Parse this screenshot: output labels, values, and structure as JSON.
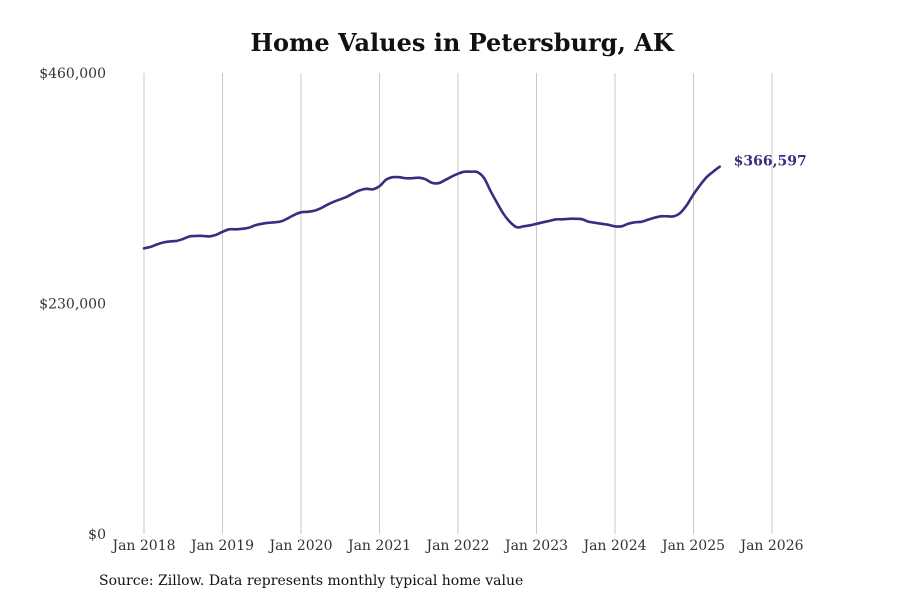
{
  "colors": {
    "line": "#34307f",
    "grid": "#c8c8c8",
    "text": "#333333"
  },
  "source_note": "Source: Zillow. Data represents monthly typical home value",
  "chart_data": {
    "type": "line",
    "title": "Home Values in Petersburg, AK",
    "xlabel": "",
    "ylabel": "",
    "x_start": "2018-01",
    "x_range_years": [
      2018,
      2026.1
    ],
    "ylim": [
      0,
      460000
    ],
    "yticks": [
      {
        "value": 0,
        "label": "$0"
      },
      {
        "value": 230000,
        "label": "$230,000"
      },
      {
        "value": 460000,
        "label": "$460,000"
      }
    ],
    "xticks": [
      {
        "value": 2018,
        "label": "Jan 2018"
      },
      {
        "value": 2019,
        "label": "Jan 2019"
      },
      {
        "value": 2020,
        "label": "Jan 2020"
      },
      {
        "value": 2021,
        "label": "Jan 2021"
      },
      {
        "value": 2022,
        "label": "Jan 2022"
      },
      {
        "value": 2023,
        "label": "Jan 2023"
      },
      {
        "value": 2024,
        "label": "Jan 2024"
      },
      {
        "value": 2025,
        "label": "Jan 2025"
      },
      {
        "value": 2026,
        "label": "Jan 2026"
      }
    ],
    "grid": "vertical",
    "end_label": "$366,597",
    "series": [
      {
        "name": "Typical home value",
        "values": [
          285000,
          286500,
          289000,
          291000,
          292000,
          292500,
          294500,
          297000,
          297500,
          297500,
          297000,
          298500,
          301500,
          304000,
          304000,
          304500,
          305500,
          308000,
          309500,
          310500,
          311000,
          312000,
          315000,
          318500,
          321000,
          321500,
          322500,
          325000,
          328500,
          331500,
          334000,
          336500,
          340000,
          343000,
          344500,
          344000,
          347000,
          353500,
          356000,
          356000,
          355000,
          355000,
          355500,
          354000,
          350500,
          350000,
          353000,
          356500,
          359500,
          361500,
          361500,
          361000,
          355000,
          342000,
          330000,
          319000,
          311000,
          306000,
          307000,
          308000,
          309500,
          311000,
          312500,
          314000,
          314000,
          314500,
          314500,
          314000,
          311500,
          310500,
          309500,
          308500,
          307000,
          307000,
          309500,
          311000,
          311500,
          313500,
          315500,
          317000,
          317000,
          317000,
          320500,
          328500,
          339000,
          348000,
          356000,
          361500,
          366597
        ]
      }
    ]
  }
}
